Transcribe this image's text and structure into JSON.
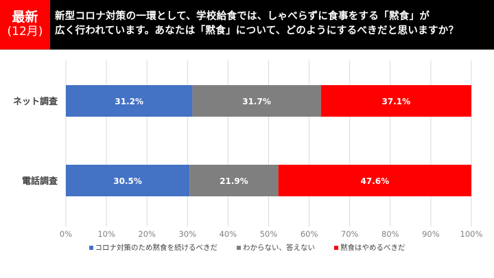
{
  "header": {
    "badge_line1": "最新",
    "badge_line2": "(12月)",
    "question_line1": "新型コロナ対策の一環として、学校給食では、しゃべらずに食事をする「黙食」が",
    "question_line2": "広く行われています。あなたは「黙食」について、どのようにするべきだと思いますか？"
  },
  "colors": {
    "header_bg": "#000000",
    "badge_bg": "#ff0000",
    "grid": "#d9d9d9",
    "axis_text": "#808080"
  },
  "chart_data": {
    "type": "bar",
    "orientation": "horizontal",
    "stacked": true,
    "percent": true,
    "categories": [
      "ネット調査",
      "電話調査"
    ],
    "series": [
      {
        "name": "コロナ対策のため黙食を続けるべきだ",
        "color": "#4472c4",
        "values": [
          31.2,
          30.5
        ]
      },
      {
        "name": "わからない、答えない",
        "color": "#7f7f7f",
        "values": [
          31.7,
          21.9
        ]
      },
      {
        "name": "黙食はやめるべきだ",
        "color": "#ff0000",
        "values": [
          37.1,
          47.6
        ]
      }
    ],
    "data_labels": [
      [
        "31.2%",
        "31.7%",
        "37.1%"
      ],
      [
        "30.5%",
        "21.9%",
        "47.6%"
      ]
    ],
    "xticks": [
      "0%",
      "10%",
      "20%",
      "30%",
      "40%",
      "50%",
      "60%",
      "70%",
      "80%",
      "90%",
      "100%"
    ],
    "xlim": [
      0,
      100
    ],
    "grid": true,
    "legend_position": "bottom",
    "title": "",
    "xlabel": "",
    "ylabel": ""
  }
}
